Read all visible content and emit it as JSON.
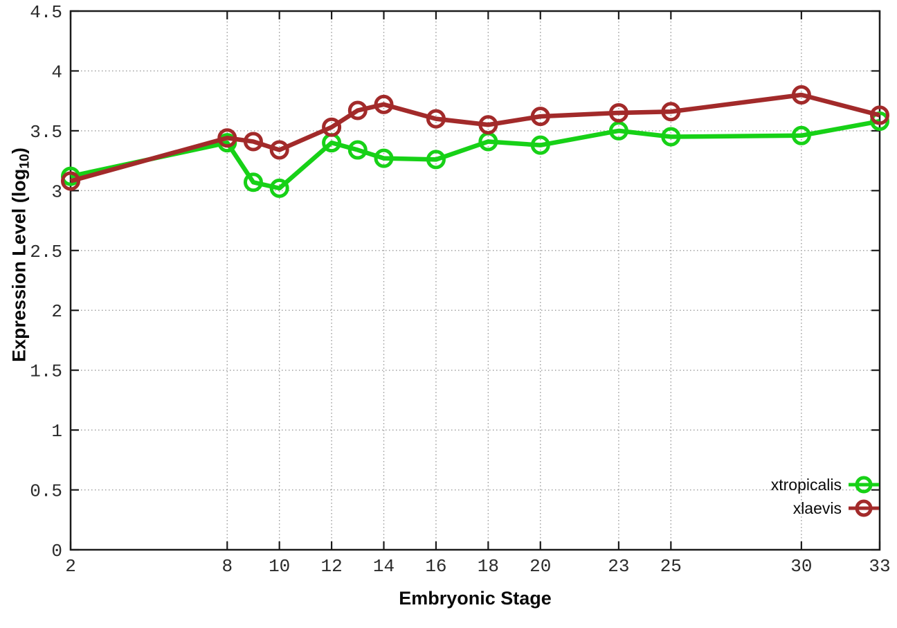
{
  "chart_data": {
    "type": "line",
    "title": "",
    "xlabel": "Embryonic Stage",
    "ylabel": "Expression Level (log10)",
    "ylabel_parts": {
      "main": "Expression Level (log",
      "sub": "10",
      "close": ")"
    },
    "x": [
      2,
      8,
      9,
      10,
      12,
      13,
      14,
      16,
      18,
      20,
      23,
      25,
      30,
      33
    ],
    "xticks": [
      2,
      8,
      10,
      12,
      14,
      16,
      18,
      20,
      23,
      25,
      30,
      33
    ],
    "xlim": [
      2,
      33
    ],
    "ylim": [
      0,
      4.5
    ],
    "ytick_labels": [
      "0",
      "0.5",
      "1",
      "1.5",
      "2",
      "2.5",
      "3",
      "3.5",
      "4",
      "4.5"
    ],
    "grid": true,
    "legend_position": "inside-bottom-right",
    "marker": "open-circle",
    "series": [
      {
        "name": "xtropicalis",
        "color": "#17d117",
        "values": [
          3.12,
          3.4,
          3.07,
          3.02,
          3.4,
          3.34,
          3.27,
          3.26,
          3.41,
          3.38,
          3.5,
          3.45,
          3.46,
          3.58
        ]
      },
      {
        "name": "xlaevis",
        "color": "#a22a2a",
        "values": [
          3.08,
          3.44,
          3.41,
          3.34,
          3.53,
          3.67,
          3.72,
          3.6,
          3.55,
          3.62,
          3.65,
          3.66,
          3.8,
          3.63
        ]
      }
    ]
  },
  "colors": {
    "background": "#ffffff",
    "axis_border": "#1b1b1b",
    "grid": "#999999",
    "tick_text": "#2b2b2b"
  }
}
